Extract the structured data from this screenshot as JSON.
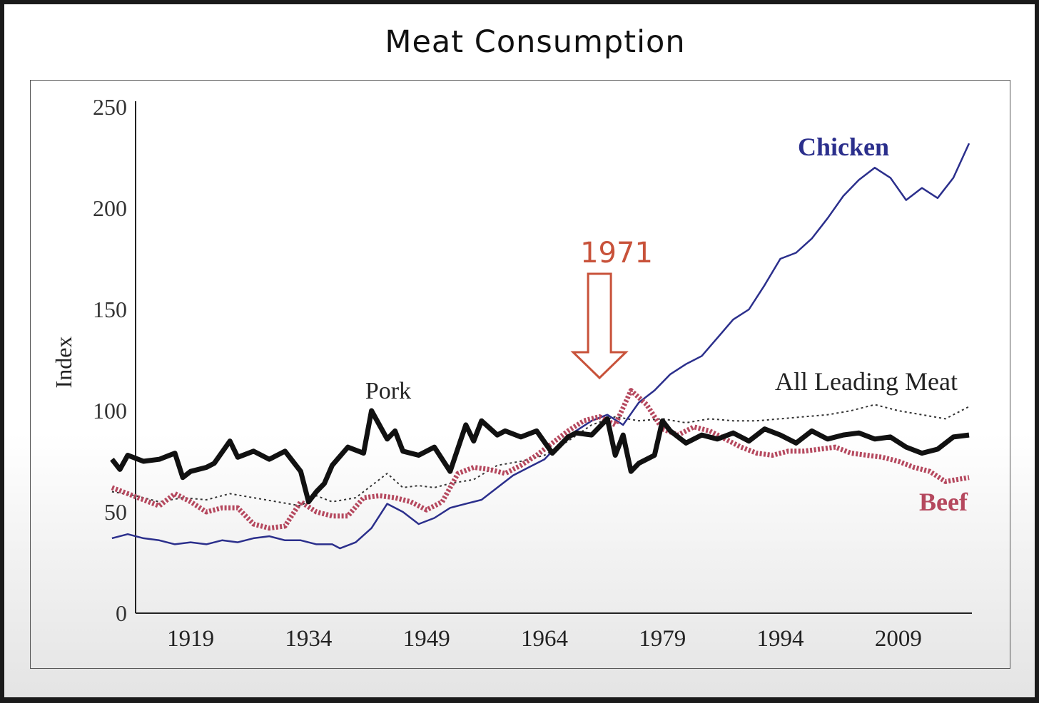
{
  "title": "Meat Consumption",
  "annotation": "1971",
  "chart_data": {
    "type": "line",
    "title": "Meat Consumption",
    "xlabel": "",
    "ylabel": "Index",
    "xlim": [
      1912,
      2018
    ],
    "ylim": [
      0,
      250
    ],
    "xticks": [
      "1919",
      "1934",
      "1949",
      "1964",
      "1979",
      "1994",
      "2009"
    ],
    "yticks": [
      "0",
      "50",
      "100",
      "150",
      "200",
      "250"
    ],
    "grid": false,
    "legend": "inline labels",
    "annotations": [
      {
        "text": "1971",
        "x": 1971
      }
    ],
    "colors": {
      "Chicken": "#2b2f8c",
      "All Leading Meat": "#333333",
      "Pork": "#111111",
      "Beef": "#b5485e",
      "annotation": "#c8523a"
    },
    "series": [
      {
        "name": "Chicken",
        "x": [
          1909,
          1911,
          1913,
          1915,
          1917,
          1919,
          1921,
          1923,
          1925,
          1927,
          1929,
          1931,
          1933,
          1935,
          1937,
          1938,
          1940,
          1942,
          1944,
          1946,
          1948,
          1950,
          1952,
          1954,
          1956,
          1958,
          1960,
          1962,
          1964,
          1966,
          1968,
          1970,
          1972,
          1974,
          1976,
          1978,
          1980,
          1982,
          1984,
          1986,
          1988,
          1990,
          1992,
          1994,
          1996,
          1998,
          2000,
          2002,
          2004,
          2006,
          2008,
          2010,
          2012,
          2014,
          2016,
          2018
        ],
        "values": [
          37,
          39,
          37,
          36,
          34,
          35,
          34,
          36,
          35,
          37,
          38,
          36,
          36,
          34,
          34,
          32,
          35,
          42,
          54,
          50,
          44,
          47,
          52,
          54,
          56,
          62,
          68,
          72,
          76,
          84,
          90,
          95,
          98,
          93,
          104,
          110,
          118,
          123,
          127,
          136,
          145,
          150,
          162,
          175,
          178,
          185,
          195,
          206,
          214,
          220,
          215,
          204,
          210,
          205,
          215,
          232
        ]
      },
      {
        "name": "All Leading Meat",
        "x": [
          1909,
          1912,
          1915,
          1918,
          1921,
          1924,
          1927,
          1930,
          1933,
          1935,
          1937,
          1940,
          1942,
          1944,
          1946,
          1948,
          1950,
          1952,
          1955,
          1958,
          1961,
          1964,
          1967,
          1970,
          1973,
          1976,
          1979,
          1982,
          1985,
          1988,
          1991,
          1994,
          1997,
          2000,
          2003,
          2006,
          2009,
          2012,
          2015,
          2018
        ],
        "values": [
          60,
          58,
          55,
          57,
          56,
          59,
          57,
          55,
          53,
          58,
          55,
          57,
          63,
          69,
          62,
          63,
          62,
          64,
          66,
          73,
          75,
          78,
          85,
          93,
          97,
          95,
          96,
          94,
          96,
          95,
          95,
          96,
          97,
          98,
          100,
          103,
          100,
          98,
          96,
          102
        ]
      },
      {
        "name": "Pork",
        "x": [
          1909,
          1910,
          1911,
          1913,
          1915,
          1917,
          1918,
          1919,
          1921,
          1922,
          1924,
          1925,
          1927,
          1929,
          1931,
          1933,
          1934,
          1935,
          1936,
          1937,
          1939,
          1941,
          1942,
          1944,
          1945,
          1946,
          1948,
          1950,
          1952,
          1954,
          1955,
          1956,
          1958,
          1959,
          1961,
          1963,
          1965,
          1967,
          1968,
          1970,
          1972,
          1973,
          1974,
          1975,
          1976,
          1978,
          1979,
          1980,
          1982,
          1984,
          1986,
          1988,
          1990,
          1992,
          1994,
          1996,
          1998,
          2000,
          2002,
          2004,
          2006,
          2008,
          2010,
          2012,
          2014,
          2016,
          2018
        ],
        "values": [
          76,
          71,
          78,
          75,
          76,
          79,
          67,
          70,
          72,
          74,
          85,
          77,
          80,
          76,
          80,
          70,
          55,
          60,
          64,
          73,
          82,
          79,
          100,
          86,
          90,
          80,
          78,
          82,
          70,
          93,
          85,
          95,
          88,
          90,
          87,
          90,
          79,
          87,
          89,
          88,
          96,
          78,
          88,
          70,
          74,
          78,
          95,
          90,
          84,
          88,
          86,
          89,
          85,
          91,
          88,
          84,
          90,
          86,
          88,
          89,
          86,
          87,
          82,
          79,
          81,
          87,
          88
        ]
      },
      {
        "name": "Beef",
        "x": [
          1909,
          1911,
          1913,
          1915,
          1917,
          1919,
          1921,
          1923,
          1925,
          1927,
          1929,
          1931,
          1933,
          1935,
          1937,
          1939,
          1941,
          1943,
          1945,
          1947,
          1949,
          1951,
          1953,
          1955,
          1957,
          1959,
          1961,
          1963,
          1965,
          1967,
          1969,
          1971,
          1973,
          1975,
          1977,
          1979,
          1981,
          1983,
          1985,
          1987,
          1989,
          1991,
          1993,
          1995,
          1997,
          1999,
          2001,
          2003,
          2005,
          2007,
          2009,
          2011,
          2013,
          2015,
          2018
        ],
        "values": [
          62,
          59,
          56,
          53,
          59,
          55,
          50,
          52,
          52,
          44,
          42,
          43,
          55,
          50,
          48,
          48,
          57,
          58,
          57,
          55,
          51,
          55,
          69,
          72,
          71,
          69,
          73,
          78,
          84,
          90,
          95,
          97,
          93,
          110,
          103,
          91,
          88,
          92,
          90,
          86,
          82,
          79,
          78,
          80,
          80,
          81,
          82,
          79,
          78,
          77,
          75,
          72,
          70,
          65,
          67
        ]
      }
    ]
  }
}
